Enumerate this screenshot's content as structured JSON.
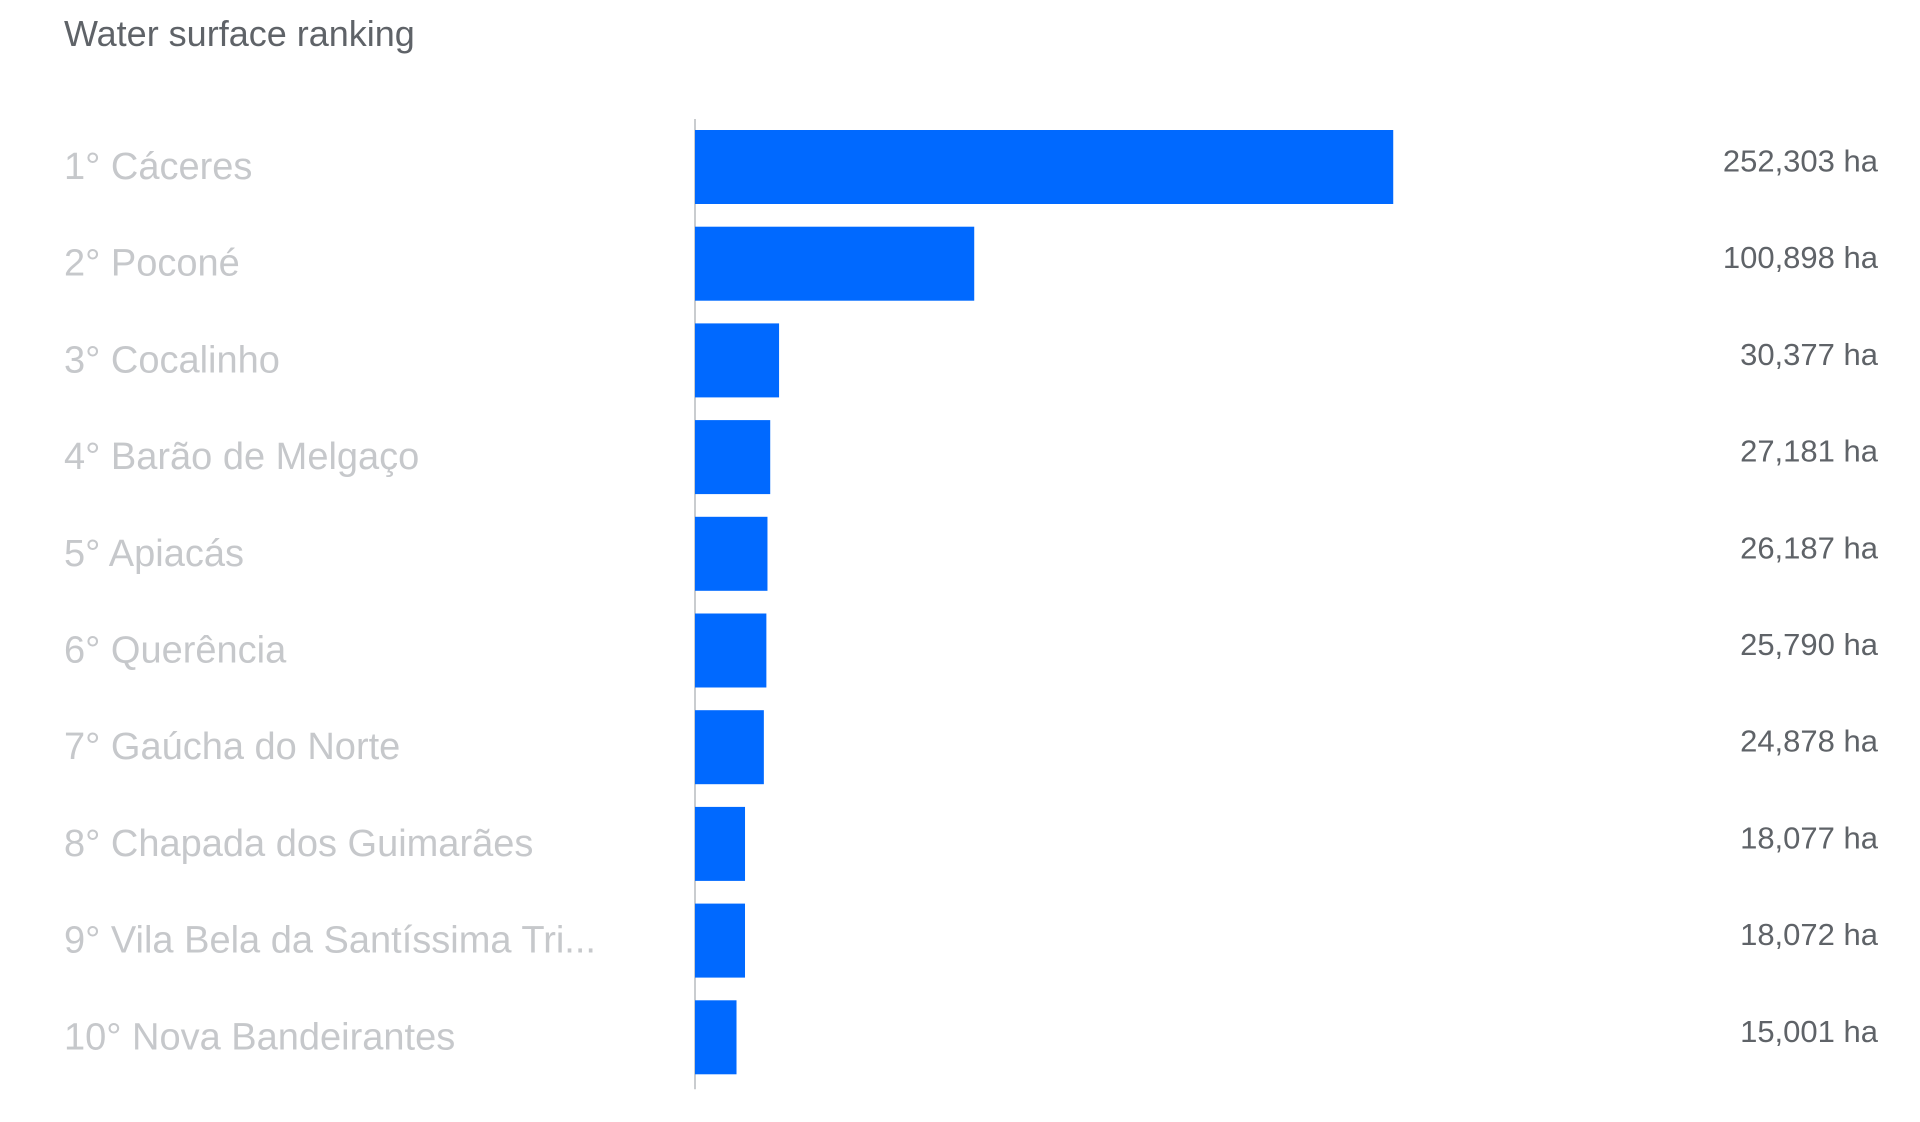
{
  "title": "Water surface ranking",
  "colors": {
    "bar": "#0069ff",
    "axis": "#c9cccf",
    "category_text": "#c6c8cb",
    "value_text": "#5f6368"
  },
  "chart_data": {
    "type": "bar",
    "orientation": "horizontal",
    "title": "Water surface ranking",
    "unit": "ha",
    "xlim": [
      0,
      430000
    ],
    "grid": false,
    "categories": [
      "1° Cáceres",
      "2° Poconé",
      "3° Cocalinho",
      "4° Barão de Melgaço",
      "5° Apiacás",
      "6° Querência",
      "7° Gaúcha do Norte",
      "8° Chapada dos Guimarães",
      "9° Vila Bela da Santíssima Tri...",
      "10° Nova Bandeirantes"
    ],
    "values": [
      252303,
      100898,
      30377,
      27181,
      26187,
      25790,
      24878,
      18077,
      18072,
      15001
    ],
    "value_labels": [
      "252,303 ha",
      "100,898 ha",
      "30,377 ha",
      "27,181 ha",
      "26,187 ha",
      "25,790 ha",
      "24,878 ha",
      "18,077 ha",
      "18,072 ha",
      "15,001 ha"
    ]
  }
}
